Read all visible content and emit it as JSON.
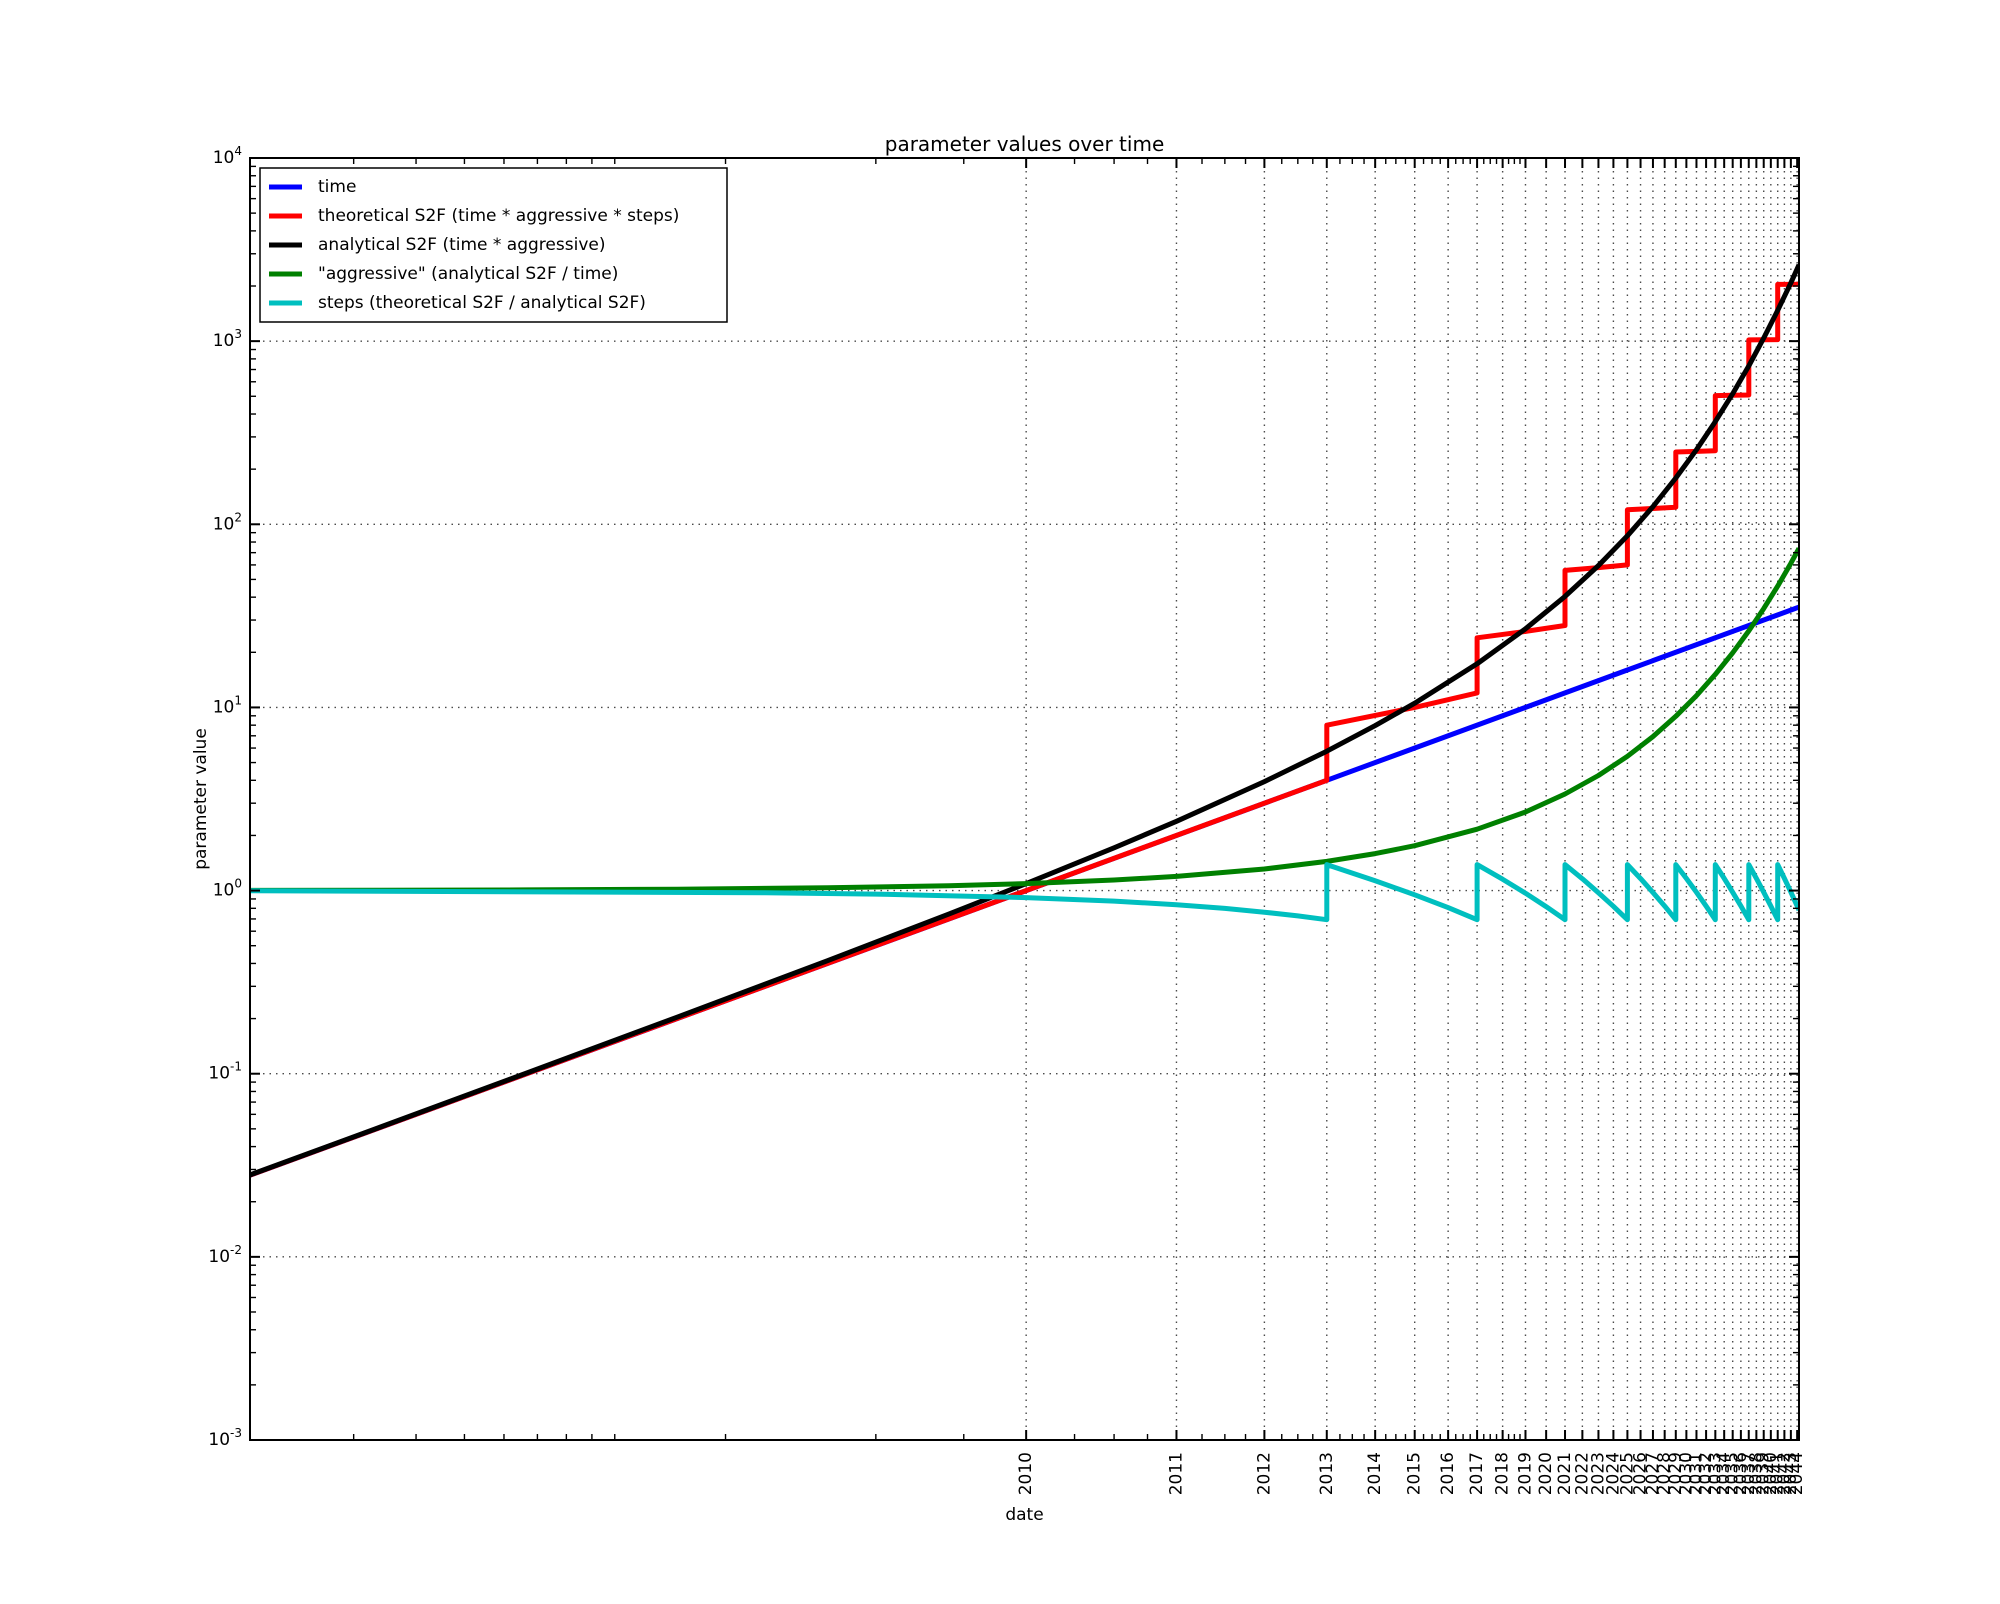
{
  "chart_data": {
    "type": "line",
    "title": "parameter values over time",
    "xlabel": "date",
    "ylabel": "parameter value",
    "grid": "dotted major gridlines, black on white",
    "legend_position": "upper left",
    "x_axis": {
      "scale": "log",
      "unit": "years since 2009",
      "min": 0.0279,
      "max": 35.3,
      "tick_values": [
        1,
        2,
        3,
        4,
        5,
        6,
        7,
        8,
        9,
        10,
        11,
        12,
        13,
        14,
        15,
        16,
        17,
        18,
        19,
        20,
        21,
        22,
        23,
        24,
        25,
        26,
        27,
        28,
        29,
        30,
        31,
        32,
        33,
        34,
        35
      ],
      "tick_labels": [
        "2010",
        "2011",
        "2012",
        "2013",
        "2014",
        "2015",
        "2016",
        "2017",
        "2018",
        "2019",
        "2020",
        "2021",
        "2022",
        "2023",
        "2024",
        "2025",
        "2026",
        "2027",
        "2028",
        "2029",
        "2030",
        "2031",
        "2032",
        "2033",
        "2034",
        "2035",
        "2036",
        "2037",
        "2038",
        "2039",
        "2040",
        "2041",
        "2042",
        "2043",
        "2044"
      ],
      "minor_tick_values": [
        0.045,
        0.06,
        0.075,
        0.09,
        0.105,
        0.12,
        0.135,
        0.15,
        0.25,
        0.5,
        0.75,
        1.25,
        1.5,
        1.75,
        2.25,
        2.5,
        2.75,
        3.25,
        3.5,
        3.75,
        4.25,
        4.5,
        4.75,
        5.25,
        5.5,
        5.75,
        6.25,
        6.5,
        6.75,
        7.25,
        7.5,
        7.75,
        8.25,
        8.5,
        8.75,
        9.25,
        9.5,
        9.75
      ],
      "label_rotation_deg": 90
    },
    "y_axis": {
      "scale": "log",
      "min_exp": -3,
      "max_exp": 4,
      "tick_exponents": [
        4,
        3,
        2,
        1,
        0,
        -1,
        -2,
        -3
      ],
      "minor_subs": [
        2,
        3,
        4,
        5,
        6,
        7,
        8,
        9
      ]
    },
    "series": [
      {
        "name": "time",
        "color": "#0000ff",
        "points": [
          [
            0.0279,
            0.0279
          ],
          [
            1,
            1
          ],
          [
            4,
            4
          ],
          [
            16,
            16
          ],
          [
            35.3,
            35.3
          ]
        ]
      },
      {
        "name": "theoretical S2F (time * aggressive * steps)",
        "color": "#ff0000",
        "points": [
          [
            0.0279,
            0.0279
          ],
          [
            4,
            4
          ],
          [
            4,
            8
          ],
          [
            6,
            10
          ],
          [
            8,
            12
          ],
          [
            8,
            24
          ],
          [
            10,
            26
          ],
          [
            12,
            28
          ],
          [
            12,
            56
          ],
          [
            14,
            58
          ],
          [
            16,
            60
          ],
          [
            16,
            120
          ],
          [
            18,
            122
          ],
          [
            20,
            124
          ],
          [
            20,
            248
          ],
          [
            22,
            250
          ],
          [
            24,
            252
          ],
          [
            24,
            504
          ],
          [
            26,
            506
          ],
          [
            28,
            508
          ],
          [
            28,
            1016
          ],
          [
            30,
            1018
          ],
          [
            32,
            1020
          ],
          [
            32,
            2040
          ],
          [
            34,
            2042
          ],
          [
            35.3,
            2043.3
          ]
        ]
      },
      {
        "name": "analytical S2F (time * aggressive)",
        "color": "#000000",
        "points": [
          [
            0.0279,
            0.02801
          ],
          [
            0.05,
            0.05022
          ],
          [
            0.1,
            0.1009
          ],
          [
            0.2,
            0.2035
          ],
          [
            0.4,
            0.4142
          ],
          [
            0.7,
            0.7442
          ],
          [
            1,
            1.092
          ],
          [
            1.5,
            1.713
          ],
          [
            2,
            2.39
          ],
          [
            3,
            3.934
          ],
          [
            4,
            5.771
          ],
          [
            5,
            7.955
          ],
          [
            6,
            10.55
          ],
          [
            8,
            17.31
          ],
          [
            10,
            26.87
          ],
          [
            12,
            40.4
          ],
          [
            14,
            59.52
          ],
          [
            16,
            86.56
          ],
          [
            18,
            124.8
          ],
          [
            20,
            178.9
          ],
          [
            22,
            255.4
          ],
          [
            24,
            363.6
          ],
          [
            26,
            516.6
          ],
          [
            28,
            732.9
          ],
          [
            30,
            1039
          ],
          [
            32,
            1472
          ],
          [
            34,
            2083
          ],
          [
            35.3,
            2611
          ]
        ]
      },
      {
        "name": "\"aggressive\" (analytical S2F / time)",
        "color": "#008000",
        "points": [
          [
            0.0279,
            1.002
          ],
          [
            0.05,
            1.004
          ],
          [
            0.1,
            1.009
          ],
          [
            0.2,
            1.018
          ],
          [
            0.4,
            1.036
          ],
          [
            0.7,
            1.063
          ],
          [
            1,
            1.092
          ],
          [
            1.5,
            1.142
          ],
          [
            2,
            1.195
          ],
          [
            3,
            1.311
          ],
          [
            4,
            1.443
          ],
          [
            5,
            1.591
          ],
          [
            6,
            1.759
          ],
          [
            8,
            2.164
          ],
          [
            10,
            2.687
          ],
          [
            12,
            3.366
          ],
          [
            14,
            4.251
          ],
          [
            16,
            5.41
          ],
          [
            18,
            6.934
          ],
          [
            20,
            8.944
          ],
          [
            22,
            11.61
          ],
          [
            24,
            15.15
          ],
          [
            26,
            19.87
          ],
          [
            28,
            26.17
          ],
          [
            30,
            34.63
          ],
          [
            32,
            45.99
          ],
          [
            34,
            61.28
          ],
          [
            35.3,
            73.98
          ]
        ]
      },
      {
        "name": "steps (theoretical S2F / analytical S2F)",
        "color": "#00bfbf",
        "points": [
          [
            0.0279,
            0.998
          ],
          [
            0.3,
            0.974
          ],
          [
            0.5,
            0.957
          ],
          [
            1,
            0.916
          ],
          [
            1.5,
            0.876
          ],
          [
            2,
            0.837
          ],
          [
            2.5,
            0.799
          ],
          [
            3,
            0.762
          ],
          [
            3.5,
            0.727
          ],
          [
            4,
            0.693
          ],
          [
            4,
            1.386
          ],
          [
            5,
            1.131
          ],
          [
            6,
            0.948
          ],
          [
            7,
            0.807
          ],
          [
            8,
            0.693
          ],
          [
            8,
            1.386
          ],
          [
            9,
            1.153
          ],
          [
            10,
            0.967
          ],
          [
            11,
            0.817
          ],
          [
            12,
            0.693
          ],
          [
            12,
            1.386
          ],
          [
            13,
            1.16
          ],
          [
            14,
            0.974
          ],
          [
            15,
            0.821
          ],
          [
            16,
            0.693
          ],
          [
            16,
            1.386
          ],
          [
            17,
            1.163
          ],
          [
            18,
            0.977
          ],
          [
            19,
            0.823
          ],
          [
            20,
            0.693
          ],
          [
            20,
            1.386
          ],
          [
            21,
            1.164
          ],
          [
            22,
            0.979
          ],
          [
            23,
            0.823
          ],
          [
            24,
            0.693
          ],
          [
            24,
            1.386
          ],
          [
            25,
            1.165
          ],
          [
            26,
            0.979
          ],
          [
            27,
            0.824
          ],
          [
            28,
            0.693
          ],
          [
            28,
            1.386
          ],
          [
            29,
            1.165
          ],
          [
            30,
            0.98
          ],
          [
            31,
            0.824
          ],
          [
            32,
            0.693
          ],
          [
            32,
            1.386
          ],
          [
            33,
            1.166
          ],
          [
            34,
            0.98
          ],
          [
            35.3,
            0.782
          ]
        ]
      }
    ]
  },
  "legend": {
    "border_color": "#000000",
    "background": "#ffffff"
  },
  "style_colors": {
    "spine": "#000000",
    "grid": "#4a4a4a",
    "background": "#ffffff"
  }
}
